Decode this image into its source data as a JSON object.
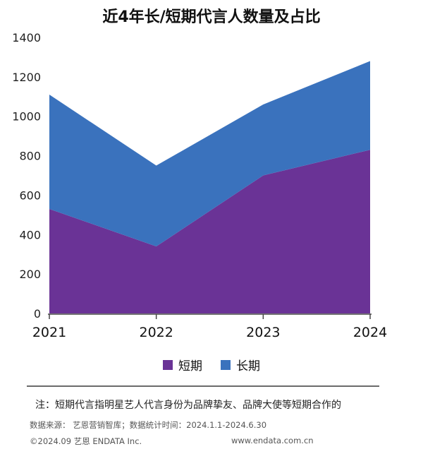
{
  "chart_data": {
    "type": "area",
    "title": "近4年长/短期代言人数量及占比",
    "categories": [
      "2021",
      "2022",
      "2023",
      "2024"
    ],
    "series": [
      {
        "name": "短期",
        "values": [
          530,
          340,
          700,
          830
        ],
        "color": "#6a3396"
      },
      {
        "name": "长期",
        "values": [
          580,
          410,
          360,
          450
        ],
        "color": "#3a72bd"
      }
    ],
    "stacked": true,
    "ylim": [
      0,
      1400
    ],
    "yticks": [
      0,
      200,
      400,
      600,
      800,
      1000,
      1200,
      1400
    ],
    "grid": false,
    "legend_position": "bottom"
  },
  "footer": {
    "note": "注：短期代言指明星艺人代言身份为品牌挚友、品牌大使等短期合作的",
    "source": "数据来源： 艺恩营销智库；数据统计时间：2024.1.1-2024.6.30",
    "copyright": "©2024.09 艺恩 ENDATA Inc.",
    "website": "www.endata.com.cn"
  }
}
